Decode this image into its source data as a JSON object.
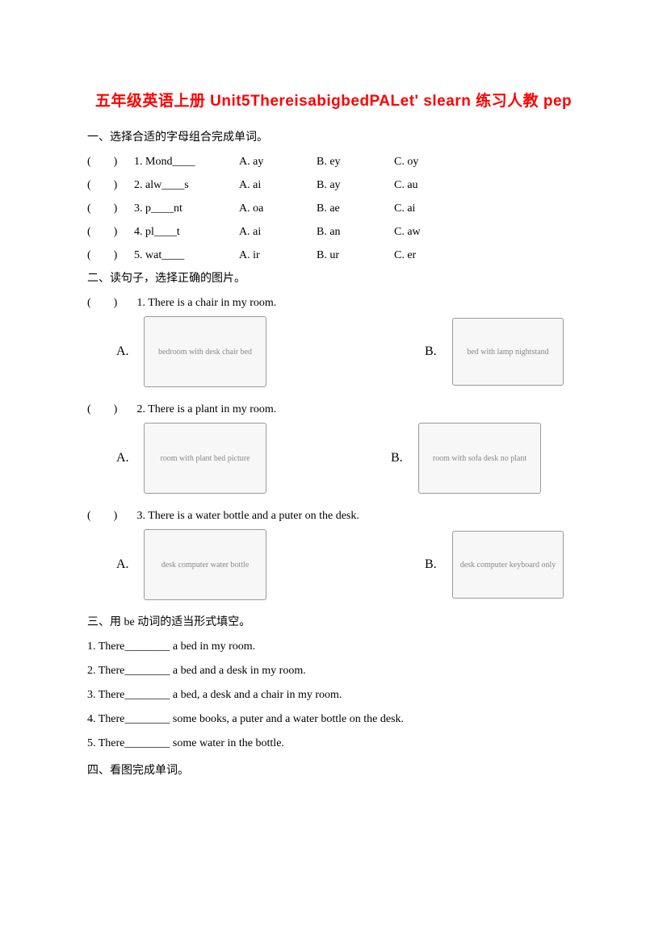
{
  "title": "五年级英语上册 Unit5ThereisabigbedPALet' slearn 练习人教 pep",
  "s1": {
    "head": "一、选择合适的字母组合完成单词。",
    "rows": [
      {
        "paren": "(　　)",
        "q": "1. Mond____",
        "a": "A. ay",
        "b": "B. ey",
        "c": "C. oy"
      },
      {
        "paren": "(　　)",
        "q": "2. alw____s",
        "a": "A. ai",
        "b": "B. ay",
        "c": "C. au"
      },
      {
        "paren": "(　　)",
        "q": "3. p____nt",
        "a": "A. oa",
        "b": "B. ae",
        "c": "C. ai"
      },
      {
        "paren": "(　　)",
        "q": "4. pl____t",
        "a": "A. ai",
        "b": "B. an",
        "c": "C. aw"
      },
      {
        "paren": "(　　)",
        "q": "5. wat____",
        "a": "A. ir",
        "b": "B. ur",
        "c": "C. er"
      }
    ]
  },
  "s2": {
    "head": "二、读句子，选择正确的图片。",
    "q1": {
      "paren": "(　　)",
      "text": "1. There is a chair in my room.",
      "la": "A.",
      "lb": "B.",
      "imgA": "bedroom with desk chair bed",
      "imgB": "bed with lamp nightstand"
    },
    "q2": {
      "paren": "(　　)",
      "text": "2. There is a plant in my room.",
      "la": "A.",
      "lb": "B.",
      "imgA": "room with plant bed picture",
      "imgB": "room with sofa desk no plant"
    },
    "q3": {
      "paren": "(　　)",
      "text": "3. There is a water bottle and a puter on the desk.",
      "la": "A.",
      "lb": "B.",
      "imgA": "desk computer water bottle",
      "imgB": "desk computer keyboard only"
    }
  },
  "s3": {
    "head": "三、用 be 动词的适当形式填空。",
    "items": [
      "1. There________ a bed in my room.",
      "2. There________ a bed and a desk in my room.",
      "3. There________ a bed, a desk and a chair in my room.",
      "4. There________ some books, a puter and a water bottle on the desk.",
      "5. There________ some water in the bottle."
    ]
  },
  "s4": {
    "head": "四、看图完成单词。"
  }
}
